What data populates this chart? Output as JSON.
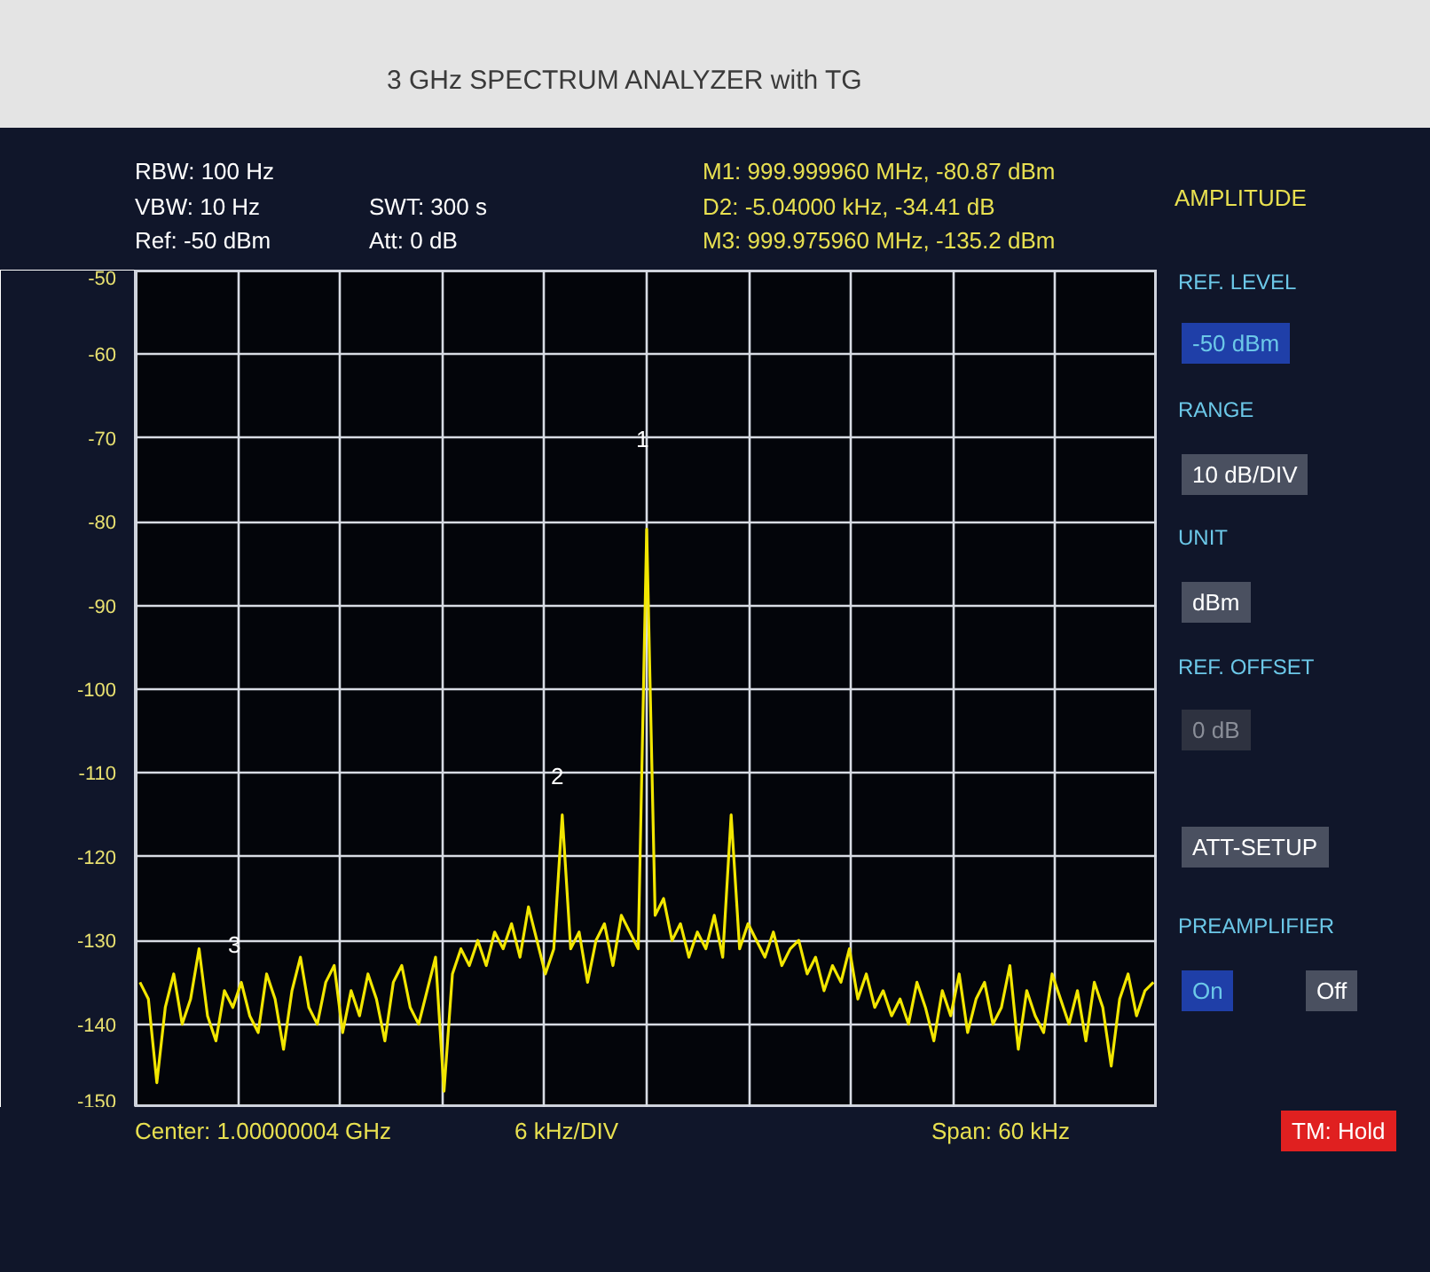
{
  "chart_data": {
    "type": "line",
    "categories": [
      null,
      null,
      null,
      null,
      null,
      null,
      null,
      null,
      null,
      null,
      null,
      null,
      null,
      null,
      null,
      null,
      null,
      null,
      null,
      null,
      null,
      null,
      null,
      null,
      null,
      null,
      null,
      null,
      null,
      null,
      null,
      null,
      null,
      null,
      null,
      null,
      null,
      null,
      null,
      null,
      null,
      null,
      null,
      null,
      null,
      null,
      null,
      null,
      null,
      null,
      null,
      null,
      null,
      null,
      null,
      null,
      null,
      null,
      null,
      null,
      null,
      null,
      null,
      null,
      null,
      null,
      null,
      null,
      null,
      null,
      null,
      null,
      null,
      null,
      null,
      null,
      null,
      null,
      null,
      null,
      null,
      null,
      null,
      null,
      null,
      null,
      null,
      null,
      null,
      null,
      null,
      null,
      null,
      null,
      null,
      null,
      null,
      null,
      null,
      null,
      null,
      null,
      null,
      null,
      null,
      null,
      null,
      null,
      null,
      null,
      null,
      null,
      null,
      null,
      null,
      null,
      null,
      null,
      null,
      null,
      null
    ],
    "series": [
      {
        "color": "#f2e600",
        "values": [
          -135,
          -137,
          -147,
          -138,
          -134,
          -140,
          -137,
          -131,
          -139,
          -142,
          -136,
          -138,
          -135,
          -139,
          -141,
          -134,
          -137,
          -143,
          -136,
          -132,
          -138,
          -140,
          -135,
          -133,
          -141,
          -136,
          -139,
          -134,
          -137,
          -142,
          -135,
          -133,
          -138,
          -140,
          -136,
          -132,
          -148,
          -134,
          -131,
          -133,
          -130,
          -133,
          -129,
          -131,
          -128,
          -132,
          -126,
          -130,
          -134,
          -131,
          -115,
          -131,
          -129,
          -135,
          -130,
          -128,
          -133,
          -127,
          -129,
          -131,
          -80.9,
          -127,
          -125,
          -130,
          -128,
          -132,
          -129,
          -131,
          -127,
          -132,
          -115,
          -131,
          -128,
          -130,
          -132,
          -129,
          -133,
          -131,
          -130,
          -134,
          -132,
          -136,
          -133,
          -135,
          -131,
          -137,
          -134,
          -138,
          -136,
          -139,
          -137,
          -140,
          -135,
          -138,
          -142,
          -136,
          -139,
          -134,
          -141,
          -137,
          -135,
          -140,
          -138,
          -133,
          -143,
          -136,
          -139,
          -141,
          -134,
          -137,
          -140,
          -136,
          -142,
          -135,
          -138,
          -145,
          -137,
          -134,
          -139,
          -136,
          -135
        ]
      }
    ],
    "ylim": [
      -150,
      -50
    ],
    "yticks": [
      -50,
      -60,
      -70,
      -80,
      -90,
      -100,
      -110,
      -120,
      -130,
      -140,
      -150
    ],
    "tick_labels": "y",
    "grid": true,
    "line_style": "solid",
    "annotations": [
      "3 GHz SPECTRUM ANALYZER with TG",
      "RBW: 100 Hz",
      "VBW: 10 Hz",
      "Ref: -50 dBm",
      "SWT: 300 s",
      "Att: 0 dB",
      "M1: 999.999960 MHz, -80.87 dBm",
      "D2: -5.04000 kHz, -34.41 dB",
      "M3: 999.975960 MHz, -135.2 dBm",
      "AMPLITUDE",
      "REF. LEVEL",
      "-50 dBm",
      "RANGE",
      "10 dB/DIV",
      "UNIT",
      "dBm",
      "REF. OFFSET",
      "0 dB",
      "ATT-SETUP",
      "PREAMPLIFIER",
      "On",
      "Off",
      "Center: 1.00000004 GHz",
      "6 kHz/DIV",
      "Span: 60 kHz",
      "TM: Hold",
      "1",
      "2",
      "3"
    ]
  }
}
